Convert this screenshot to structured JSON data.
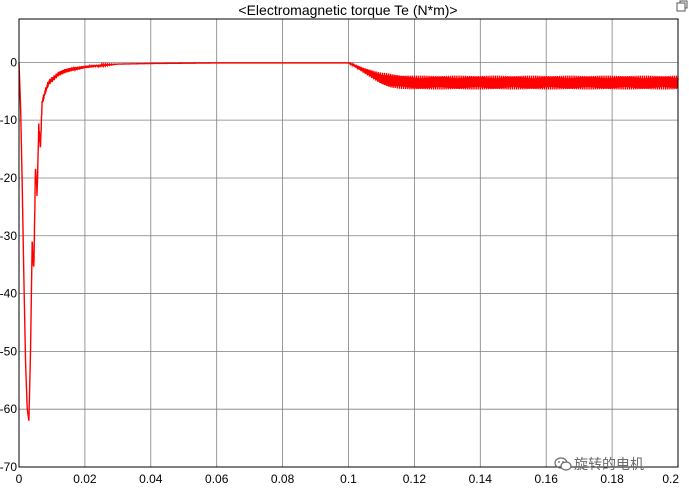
{
  "window": {
    "title": "<Electromagnetic torque Te (N*m)>",
    "corner_icon": "restore-axes-icon"
  },
  "watermark": {
    "text": "旋转的电机",
    "icon": "wechat-icon"
  },
  "colors": {
    "background": "#ffffff",
    "grid": "#808080",
    "axes": "#000000",
    "trace": "#ff0000"
  },
  "chart_data": {
    "type": "line",
    "title": "<Electromagnetic torque Te (N*m)>",
    "xlabel": "",
    "ylabel": "",
    "xlim": [
      0,
      0.2
    ],
    "ylim": [
      -70,
      7.5
    ],
    "grid": true,
    "legend": "none",
    "x_ticks": [
      "0",
      "0.02",
      "0.04",
      "0.06",
      "0.08",
      "0.1",
      "0.12",
      "0.14",
      "0.16",
      "0.18",
      "0.2"
    ],
    "y_ticks": [
      "0",
      "-10",
      "-20",
      "-30",
      "-40",
      "-50",
      "-60",
      "-70"
    ],
    "x_tick_values": [
      0,
      0.02,
      0.04,
      0.06,
      0.08,
      0.1,
      0.12,
      0.14,
      0.16,
      0.18,
      0.2
    ],
    "y_tick_values": [
      0,
      -10,
      -20,
      -30,
      -40,
      -50,
      -60,
      -70
    ],
    "series": [
      {
        "color": "#ff0000",
        "x": [
          0,
          0.0005,
          0.001,
          0.0015,
          0.002,
          0.0025,
          0.003,
          0.0035,
          0.004,
          0.0045,
          0.005,
          0.0055,
          0.006,
          0.0065,
          0.007,
          0.008,
          0.009,
          0.01,
          0.012,
          0.014,
          0.016,
          0.018,
          0.02,
          0.025,
          0.03,
          0.04,
          0.05,
          0.06,
          0.07,
          0.08,
          0.09,
          0.1,
          0.102,
          0.105,
          0.108,
          0.11,
          0.113,
          0.116,
          0.12,
          0.13,
          0.14,
          0.15,
          0.16,
          0.17,
          0.18,
          0.19,
          0.2
        ],
        "y": [
          0,
          -8,
          -22,
          -38,
          -52,
          -60,
          -62,
          -50,
          -31,
          -36,
          -18,
          -23,
          -11,
          -15,
          -7,
          -5,
          -3.5,
          -3,
          -2,
          -1.5,
          -1.2,
          -1,
          -0.8,
          -0.5,
          -0.3,
          -0.2,
          -0.15,
          -0.1,
          -0.1,
          -0.1,
          -0.1,
          -0.1,
          -0.6,
          -1.5,
          -2.3,
          -2.8,
          -3.2,
          -3.4,
          -3.5,
          -3.5,
          -3.5,
          -3.5,
          -3.5,
          -3.5,
          -3.5,
          -3.5,
          -3.5
        ],
        "ripple_amplitude": 1.2
      }
    ]
  }
}
